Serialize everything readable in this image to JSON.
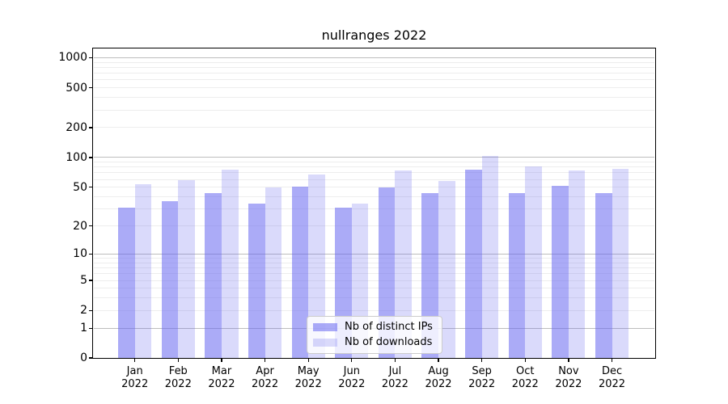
{
  "chart_data": {
    "type": "bar",
    "title": "nullranges 2022",
    "categories": [
      "Jan",
      "Feb",
      "Mar",
      "Apr",
      "May",
      "Jun",
      "Jul",
      "Aug",
      "Sep",
      "Oct",
      "Nov",
      "Dec"
    ],
    "year_label": "2022",
    "series": [
      {
        "name": "Nb of distinct IPs",
        "color": "rgba(102,102,240,0.55)",
        "values": [
          31,
          36,
          44,
          34,
          51,
          31,
          50,
          44,
          76,
          44,
          52,
          44
        ]
      },
      {
        "name": "Nb of downloads",
        "color": "rgba(102,102,240,0.24)",
        "values": [
          54,
          59,
          75,
          50,
          67,
          34,
          74,
          58,
          104,
          82,
          74,
          77
        ]
      }
    ],
    "yscale": "log(value+1)",
    "ylim": [
      0,
      1000
    ],
    "yticks": [
      0,
      1,
      2,
      5,
      10,
      20,
      50,
      100,
      200,
      500,
      1000
    ],
    "xlabel": "",
    "ylabel": "",
    "grid": true,
    "legend_position": "lower center"
  }
}
